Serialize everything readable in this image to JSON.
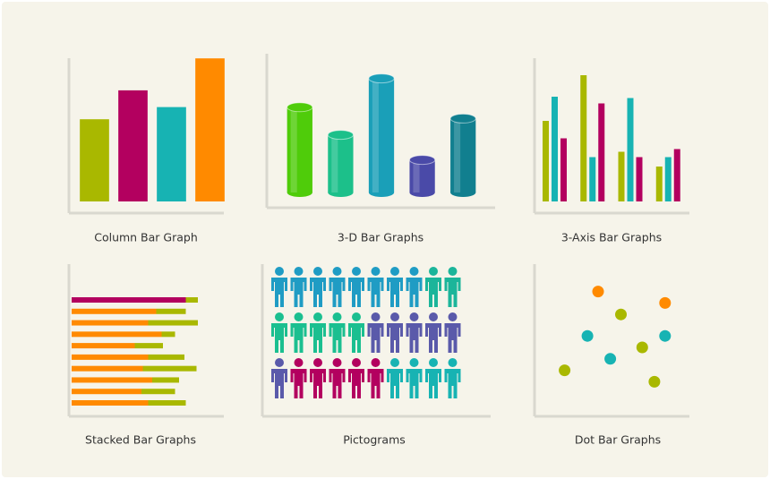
{
  "chart_data": [
    {
      "type": "bar",
      "caption": "Column Bar Graph",
      "ylim": [
        0,
        100
      ],
      "values": [
        54,
        73,
        62,
        94
      ],
      "colors": [
        "#a9b800",
        "#b3005f",
        "#17b3b3",
        "#ff8a00"
      ]
    },
    {
      "type": "bar3d",
      "caption": "3-D Bar Graphs",
      "ylim": [
        0,
        100
      ],
      "values": [
        68,
        46,
        91,
        26,
        59
      ],
      "colors": [
        "#4fcc0a",
        "#1cc08a",
        "#1a9fb8",
        "#4a4aa8",
        "#117f8f"
      ]
    },
    {
      "type": "grouped",
      "caption": "3-Axis Bar Graphs",
      "ylim": [
        0,
        100
      ],
      "series": [
        {
          "color": "#a9b800",
          "values": [
            60,
            94,
            37,
            26
          ]
        },
        {
          "color": "#17b3b3",
          "values": [
            78,
            33,
            77,
            33
          ]
        },
        {
          "color": "#b3005f",
          "values": [
            47,
            73,
            33,
            39
          ]
        }
      ]
    },
    {
      "type": "stacked",
      "caption": "Stacked Bar Graphs",
      "xlim": [
        0,
        100
      ],
      "series": [
        {
          "colors": [
            "#b3005f",
            "#ff8a00",
            "#ff8a00",
            "#ff8a00",
            "#ff8a00",
            "#ff8a00",
            "#ff8a00",
            "#ff8a00",
            "#ff8a00",
            "#ff8a00"
          ],
          "values": [
            85,
            63,
            57,
            67,
            47,
            57,
            53,
            60,
            52,
            57
          ]
        },
        {
          "colors": [
            "#a9b800",
            "#a9b800",
            "#a9b800",
            "#a9b800",
            "#a9b800",
            "#a9b800",
            "#a9b800",
            "#a9b800",
            "#a9b800",
            "#a9b800"
          ],
          "values": [
            9,
            22,
            37,
            10,
            21,
            27,
            40,
            20,
            25,
            28
          ]
        }
      ]
    },
    {
      "type": "pictogram",
      "caption": "Pictograms",
      "rows": [
        [
          {
            "color": "#1f9cc4",
            "count": 8
          },
          {
            "color": "#1bb59a",
            "count": 2
          }
        ],
        [
          {
            "color": "#1bbf90",
            "count": 5
          },
          {
            "color": "#5a5aaa",
            "count": 5
          }
        ],
        [
          {
            "color": "#5a5aaa",
            "count": 1
          },
          {
            "color": "#b3005f",
            "count": 5
          },
          {
            "color": "#17b3b3",
            "count": 4
          }
        ]
      ]
    },
    {
      "type": "scatter",
      "caption": "Dot Bar Graphs",
      "xlim": [
        0,
        100
      ],
      "ylim": [
        0,
        100
      ],
      "series": [
        {
          "color": "#ff8a00",
          "x": [
            40,
            84
          ],
          "values": [
            84,
            76
          ]
        },
        {
          "color": "#a9b800",
          "x": [
            55,
            69,
            18,
            77
          ],
          "values": [
            68,
            45,
            29,
            21
          ]
        },
        {
          "color": "#17b3b3",
          "x": [
            33,
            84,
            48
          ],
          "values": [
            53,
            53,
            37
          ]
        }
      ]
    }
  ]
}
